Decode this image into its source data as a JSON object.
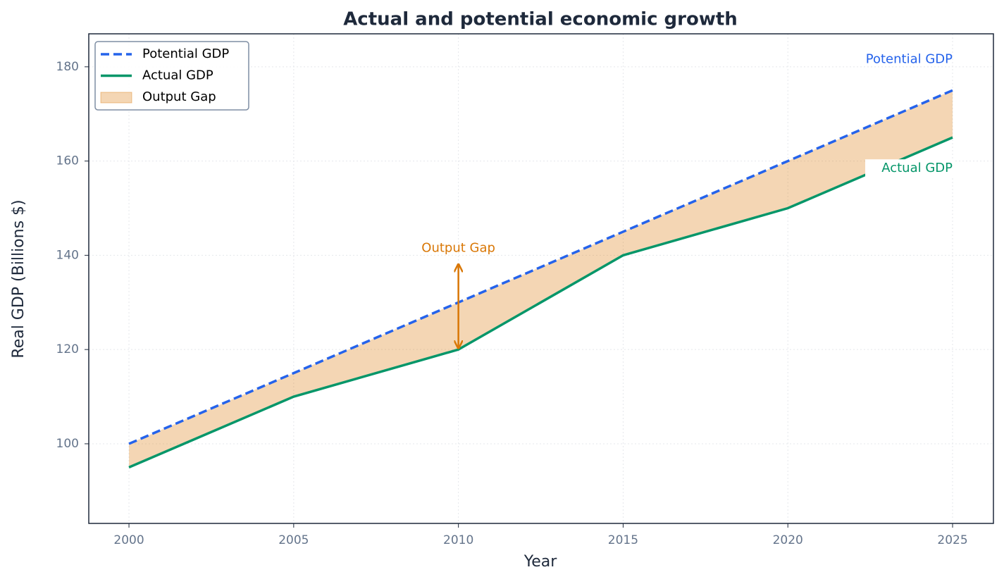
{
  "chart_data": {
    "type": "line",
    "title": "Actual and potential economic growth",
    "x_label": "Year",
    "y_label": "Real GDP (Billions $)",
    "x": [
      2000,
      2005,
      2010,
      2015,
      2020,
      2025
    ],
    "series": [
      {
        "name": "Potential GDP",
        "color": "#2563eb",
        "dash": true,
        "values": [
          100,
          115,
          130,
          145,
          160,
          175
        ]
      },
      {
        "name": "Actual GDP",
        "color": "#059669",
        "dash": false,
        "values": [
          95,
          110,
          120,
          140,
          150,
          165
        ]
      }
    ],
    "fill": {
      "name": "Output Gap",
      "color": "#d97706"
    },
    "annotations": {
      "potential": "Potential GDP",
      "actual": "Actual GDP",
      "gap": "Output Gap"
    },
    "xlim": [
      1998.78,
      2026.24
    ],
    "ylim": [
      83.1,
      187
    ],
    "xticks": [
      2000,
      2005,
      2010,
      2015,
      2020,
      2025
    ],
    "yticks": [
      100,
      120,
      140,
      160,
      180
    ],
    "grid": true,
    "legend": "upper left"
  }
}
